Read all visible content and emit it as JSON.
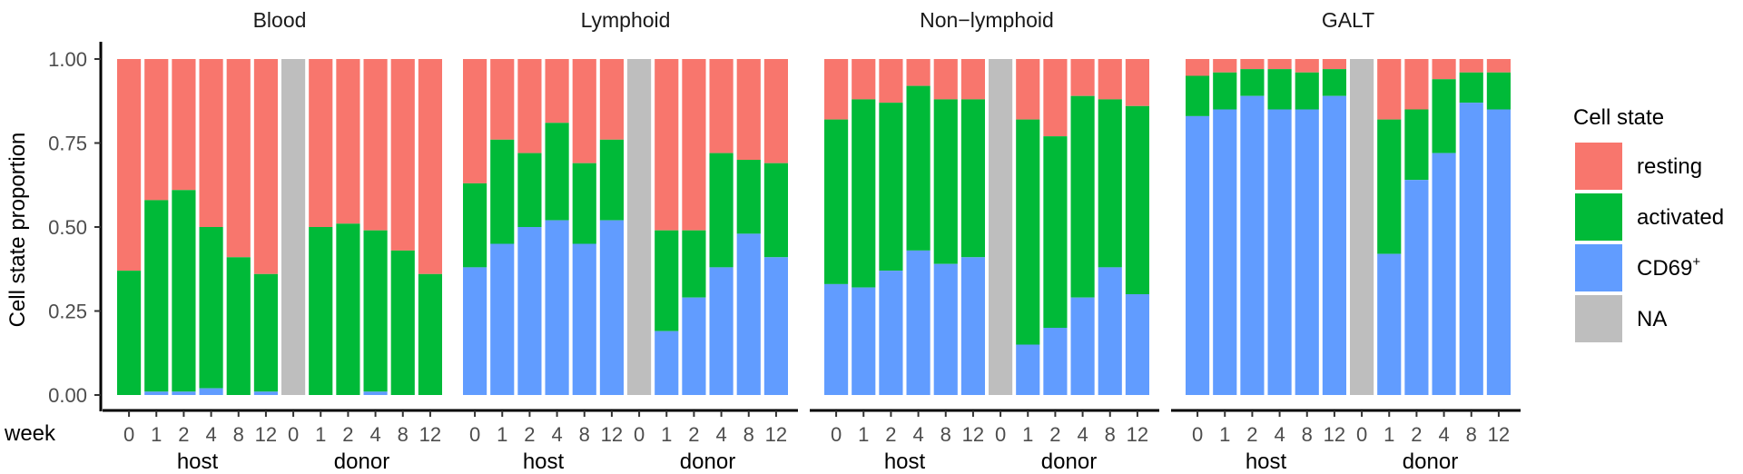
{
  "chart_data": {
    "type": "bar",
    "stacked": true,
    "ylabel": "Cell state proportion",
    "xlabel": "week",
    "ylim": [
      0,
      1
    ],
    "yticks": [
      "0.00",
      "0.25",
      "0.50",
      "0.75",
      "1.00"
    ],
    "weeks": [
      "0",
      "1",
      "2",
      "4",
      "8",
      "12",
      "0",
      "1",
      "2",
      "4",
      "8",
      "12"
    ],
    "groups": [
      {
        "label": "host",
        "from": 0,
        "to": 5
      },
      {
        "label": "donor",
        "from": 6,
        "to": 11
      }
    ],
    "legend": {
      "title": "Cell state",
      "position": "right",
      "items": [
        {
          "label": "resting",
          "color": "#F8766D"
        },
        {
          "label": "activated",
          "color": "#00BA38"
        },
        {
          "label": "CD69",
          "sup": "+",
          "color": "#619CFF"
        },
        {
          "label": "NA",
          "color": "#BEBEBE"
        }
      ]
    },
    "stack_order": [
      "CD69",
      "activated",
      "resting"
    ],
    "colors": {
      "CD69": "#619CFF",
      "activated": "#00BA38",
      "resting": "#F8766D",
      "NA": "#BEBEBE"
    },
    "panels": [
      {
        "title": "Blood",
        "bars": [
          {
            "CD69": 0.0,
            "activated": 0.37
          },
          {
            "CD69": 0.01,
            "activated": 0.58
          },
          {
            "CD69": 0.01,
            "activated": 0.61
          },
          {
            "CD69": 0.02,
            "activated": 0.5
          },
          {
            "CD69": 0.0,
            "activated": 0.41
          },
          {
            "CD69": 0.01,
            "activated": 0.36
          },
          null,
          {
            "CD69": 0.0,
            "activated": 0.5
          },
          {
            "CD69": 0.0,
            "activated": 0.51
          },
          {
            "CD69": 0.01,
            "activated": 0.49
          },
          {
            "CD69": 0.0,
            "activated": 0.43
          },
          {
            "CD69": 0.0,
            "activated": 0.36
          }
        ]
      },
      {
        "title": "Lymphoid",
        "bars": [
          {
            "CD69": 0.38,
            "activated": 0.63
          },
          {
            "CD69": 0.45,
            "activated": 0.76
          },
          {
            "CD69": 0.5,
            "activated": 0.72
          },
          {
            "CD69": 0.52,
            "activated": 0.81
          },
          {
            "CD69": 0.45,
            "activated": 0.69
          },
          {
            "CD69": 0.52,
            "activated": 0.76
          },
          null,
          {
            "CD69": 0.19,
            "activated": 0.49
          },
          {
            "CD69": 0.29,
            "activated": 0.49
          },
          {
            "CD69": 0.38,
            "activated": 0.72
          },
          {
            "CD69": 0.48,
            "activated": 0.7
          },
          {
            "CD69": 0.41,
            "activated": 0.69
          }
        ]
      },
      {
        "title": "Non−lymphoid",
        "bars": [
          {
            "CD69": 0.33,
            "activated": 0.82
          },
          {
            "CD69": 0.32,
            "activated": 0.88
          },
          {
            "CD69": 0.37,
            "activated": 0.87
          },
          {
            "CD69": 0.43,
            "activated": 0.92
          },
          {
            "CD69": 0.39,
            "activated": 0.88
          },
          {
            "CD69": 0.41,
            "activated": 0.88
          },
          null,
          {
            "CD69": 0.15,
            "activated": 0.82
          },
          {
            "CD69": 0.2,
            "activated": 0.77
          },
          {
            "CD69": 0.29,
            "activated": 0.89
          },
          {
            "CD69": 0.38,
            "activated": 0.88
          },
          {
            "CD69": 0.3,
            "activated": 0.86
          }
        ]
      },
      {
        "title": "GALT",
        "bars": [
          {
            "CD69": 0.83,
            "activated": 0.95
          },
          {
            "CD69": 0.85,
            "activated": 0.96
          },
          {
            "CD69": 0.89,
            "activated": 0.97
          },
          {
            "CD69": 0.85,
            "activated": 0.97
          },
          {
            "CD69": 0.85,
            "activated": 0.96
          },
          {
            "CD69": 0.89,
            "activated": 0.97
          },
          null,
          {
            "CD69": 0.42,
            "activated": 0.82
          },
          {
            "CD69": 0.64,
            "activated": 0.85
          },
          {
            "CD69": 0.72,
            "activated": 0.94
          },
          {
            "CD69": 0.87,
            "activated": 0.96
          },
          {
            "CD69": 0.85,
            "activated": 0.96
          }
        ]
      }
    ]
  }
}
